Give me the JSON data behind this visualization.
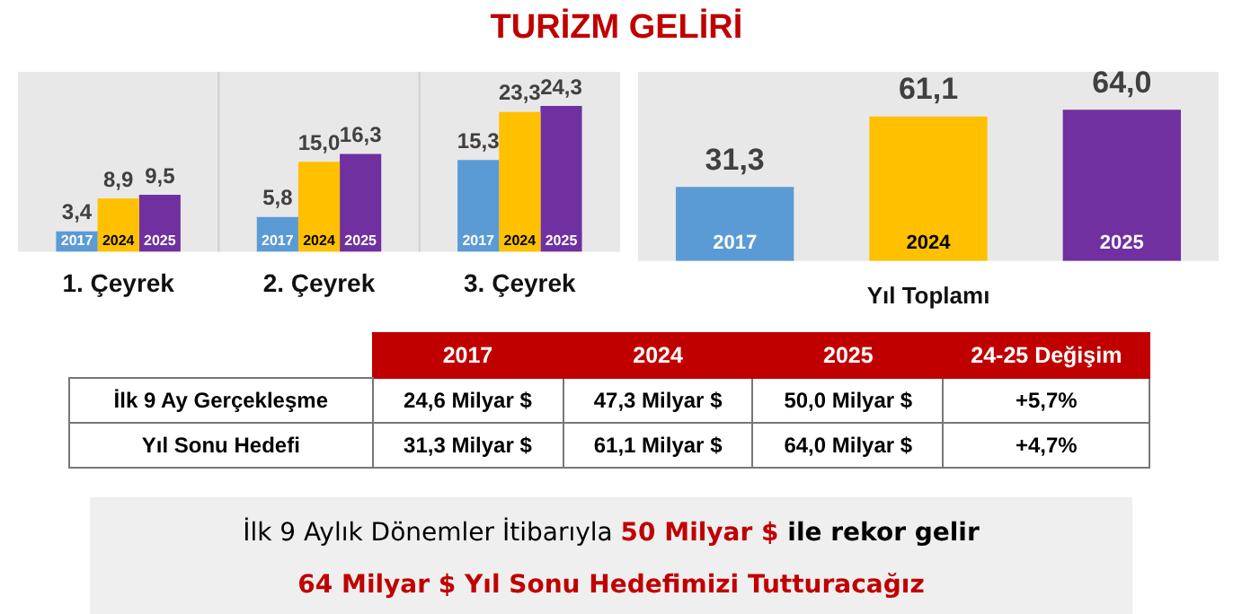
{
  "chart_data": [
    {
      "type": "bar",
      "title": "TURİZM GELİRİ",
      "categories": [
        "1. Çeyrek",
        "2. Çeyrek",
        "3. Çeyrek"
      ],
      "series": [
        {
          "name": "2017",
          "color": "#5b9bd5",
          "values": [
            3.4,
            5.8,
            15.3
          ],
          "value_labels": [
            "3,4",
            "5,8",
            "15,3"
          ]
        },
        {
          "name": "2024",
          "color": "#ffc000",
          "values": [
            8.9,
            15.0,
            23.3
          ],
          "value_labels": [
            "8,9",
            "15,0",
            "23,3"
          ]
        },
        {
          "name": "2025",
          "color": "#7030a0",
          "values": [
            9.5,
            16.3,
            24.3
          ],
          "value_labels": [
            "9,5",
            "16,3",
            "24,3"
          ]
        }
      ],
      "ylim": [
        0,
        30
      ],
      "tick_labels": "x",
      "legend": false
    },
    {
      "type": "bar",
      "xlabel": "Yıl Toplamı",
      "categories": [
        "2017",
        "2024",
        "2025"
      ],
      "values": [
        31.3,
        61.1,
        64.0
      ],
      "value_labels": [
        "31,3",
        "61,1",
        "64,0"
      ],
      "colors": [
        "#5b9bd5",
        "#ffc000",
        "#7030a0"
      ],
      "ylim": [
        0,
        80
      ],
      "tick_labels": "x",
      "legend": false
    },
    {
      "type": "other",
      "annotations": [
        "2017",
        "2024",
        "2025",
        "24-25 Değişim",
        "İlk 9 Ay Gerçekleşme",
        "24,6 Milyar $",
        "47,3 Milyar $",
        "50,0 Milyar $",
        "+5,7%",
        "Yıl Sonu Hedefi",
        "31,3 Milyar $",
        "61,1 Milyar $",
        "64,0 Milyar $",
        "+4,7%",
        "İlk 9 Aylık Dönemler İtibarıyla ",
        "50 Milyar $",
        " ile rekor gelir",
        "64 Milyar $ Yıl Sonu Hedefimizi Tutturacağız"
      ]
    }
  ]
}
